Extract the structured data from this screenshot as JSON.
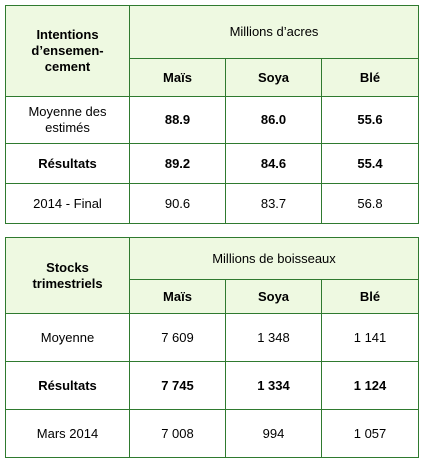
{
  "table1": {
    "corner_label": "Intentions d’ensemen-cement",
    "corner_lines": [
      "Intentions",
      "d’ensemen-",
      "cement"
    ],
    "unit_header": "Millions d’acres",
    "columns": [
      "Maïs",
      "Soya",
      "Blé"
    ],
    "rows": [
      {
        "label_lines": [
          "Moyenne des",
          "estimés"
        ],
        "values": [
          "88.9",
          "86.0",
          "55.6"
        ],
        "values_bold": true,
        "label_bold": false
      },
      {
        "label_lines": [
          "Résultats"
        ],
        "values": [
          "89.2",
          "84.6",
          "55.4"
        ],
        "values_bold": true,
        "label_bold": true
      },
      {
        "label_lines": [
          "2014 - Final"
        ],
        "values": [
          "90.6",
          "83.7",
          "56.8"
        ],
        "values_bold": false,
        "label_bold": false
      }
    ]
  },
  "table2": {
    "corner_lines": [
      "Stocks",
      "trimestriels"
    ],
    "unit_header": "Millions de boisseaux",
    "columns": [
      "Maïs",
      "Soya",
      "Blé"
    ],
    "rows": [
      {
        "label_lines": [
          "Moyenne"
        ],
        "values": [
          "7 609",
          "1 348",
          "1 141"
        ],
        "values_bold": false,
        "label_bold": false
      },
      {
        "label_lines": [
          "Résultats"
        ],
        "values": [
          "7 745",
          "1 334",
          "1 124"
        ],
        "values_bold": true,
        "label_bold": true
      },
      {
        "label_lines": [
          "Mars 2014"
        ],
        "values": [
          "7 008",
          "994",
          "1 057"
        ],
        "values_bold": false,
        "label_bold": false
      }
    ]
  },
  "colors": {
    "border": "#2f7a2f",
    "header_fill": "#eef9e1",
    "text": "#000000"
  }
}
